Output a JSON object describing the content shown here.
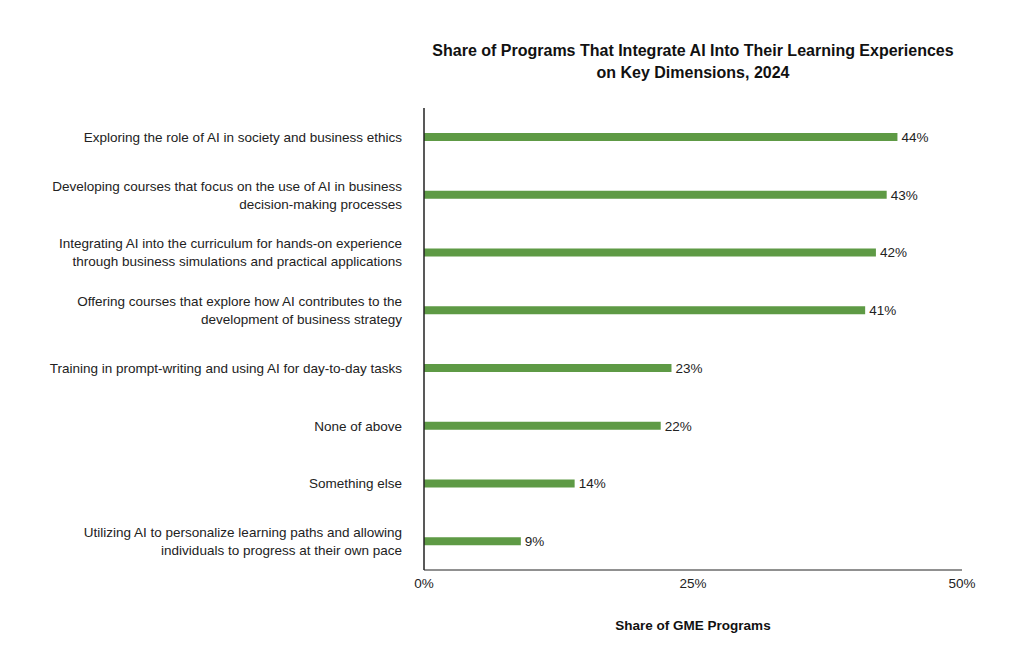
{
  "chart_data": {
    "type": "bar",
    "orientation": "horizontal",
    "title": "Share of Programs That Integrate AI Into Their Learning Experiences on Key Dimensions, 2024",
    "x_label": "Share of GME Programs",
    "categories": [
      "Exploring the role of AI in society and business ethics",
      "Developing courses that focus on the use of AI in business decision-making processes",
      "Integrating AI into the curriculum for hands-on experience through business simulations and practical applications",
      "Offering courses that explore how AI contributes to the development of business strategy",
      "Training in prompt-writing and using AI for day-to-day tasks",
      "None of above",
      "Something else",
      "Utilizing AI to personalize learning paths and allowing individuals to progress at their own pace"
    ],
    "values": [
      44,
      43,
      42,
      41,
      23,
      22,
      14,
      9
    ],
    "value_labels": [
      "44%",
      "43%",
      "42%",
      "41%",
      "23%",
      "22%",
      "14%",
      "9%"
    ],
    "color": "#5e9a45",
    "xlim": [
      0,
      50
    ],
    "xticks": [
      {
        "value": 0,
        "label": "0%"
      },
      {
        "value": 25,
        "label": "25%"
      },
      {
        "value": 50,
        "label": "50%"
      }
    ],
    "grid": false,
    "data_labels": true
  }
}
